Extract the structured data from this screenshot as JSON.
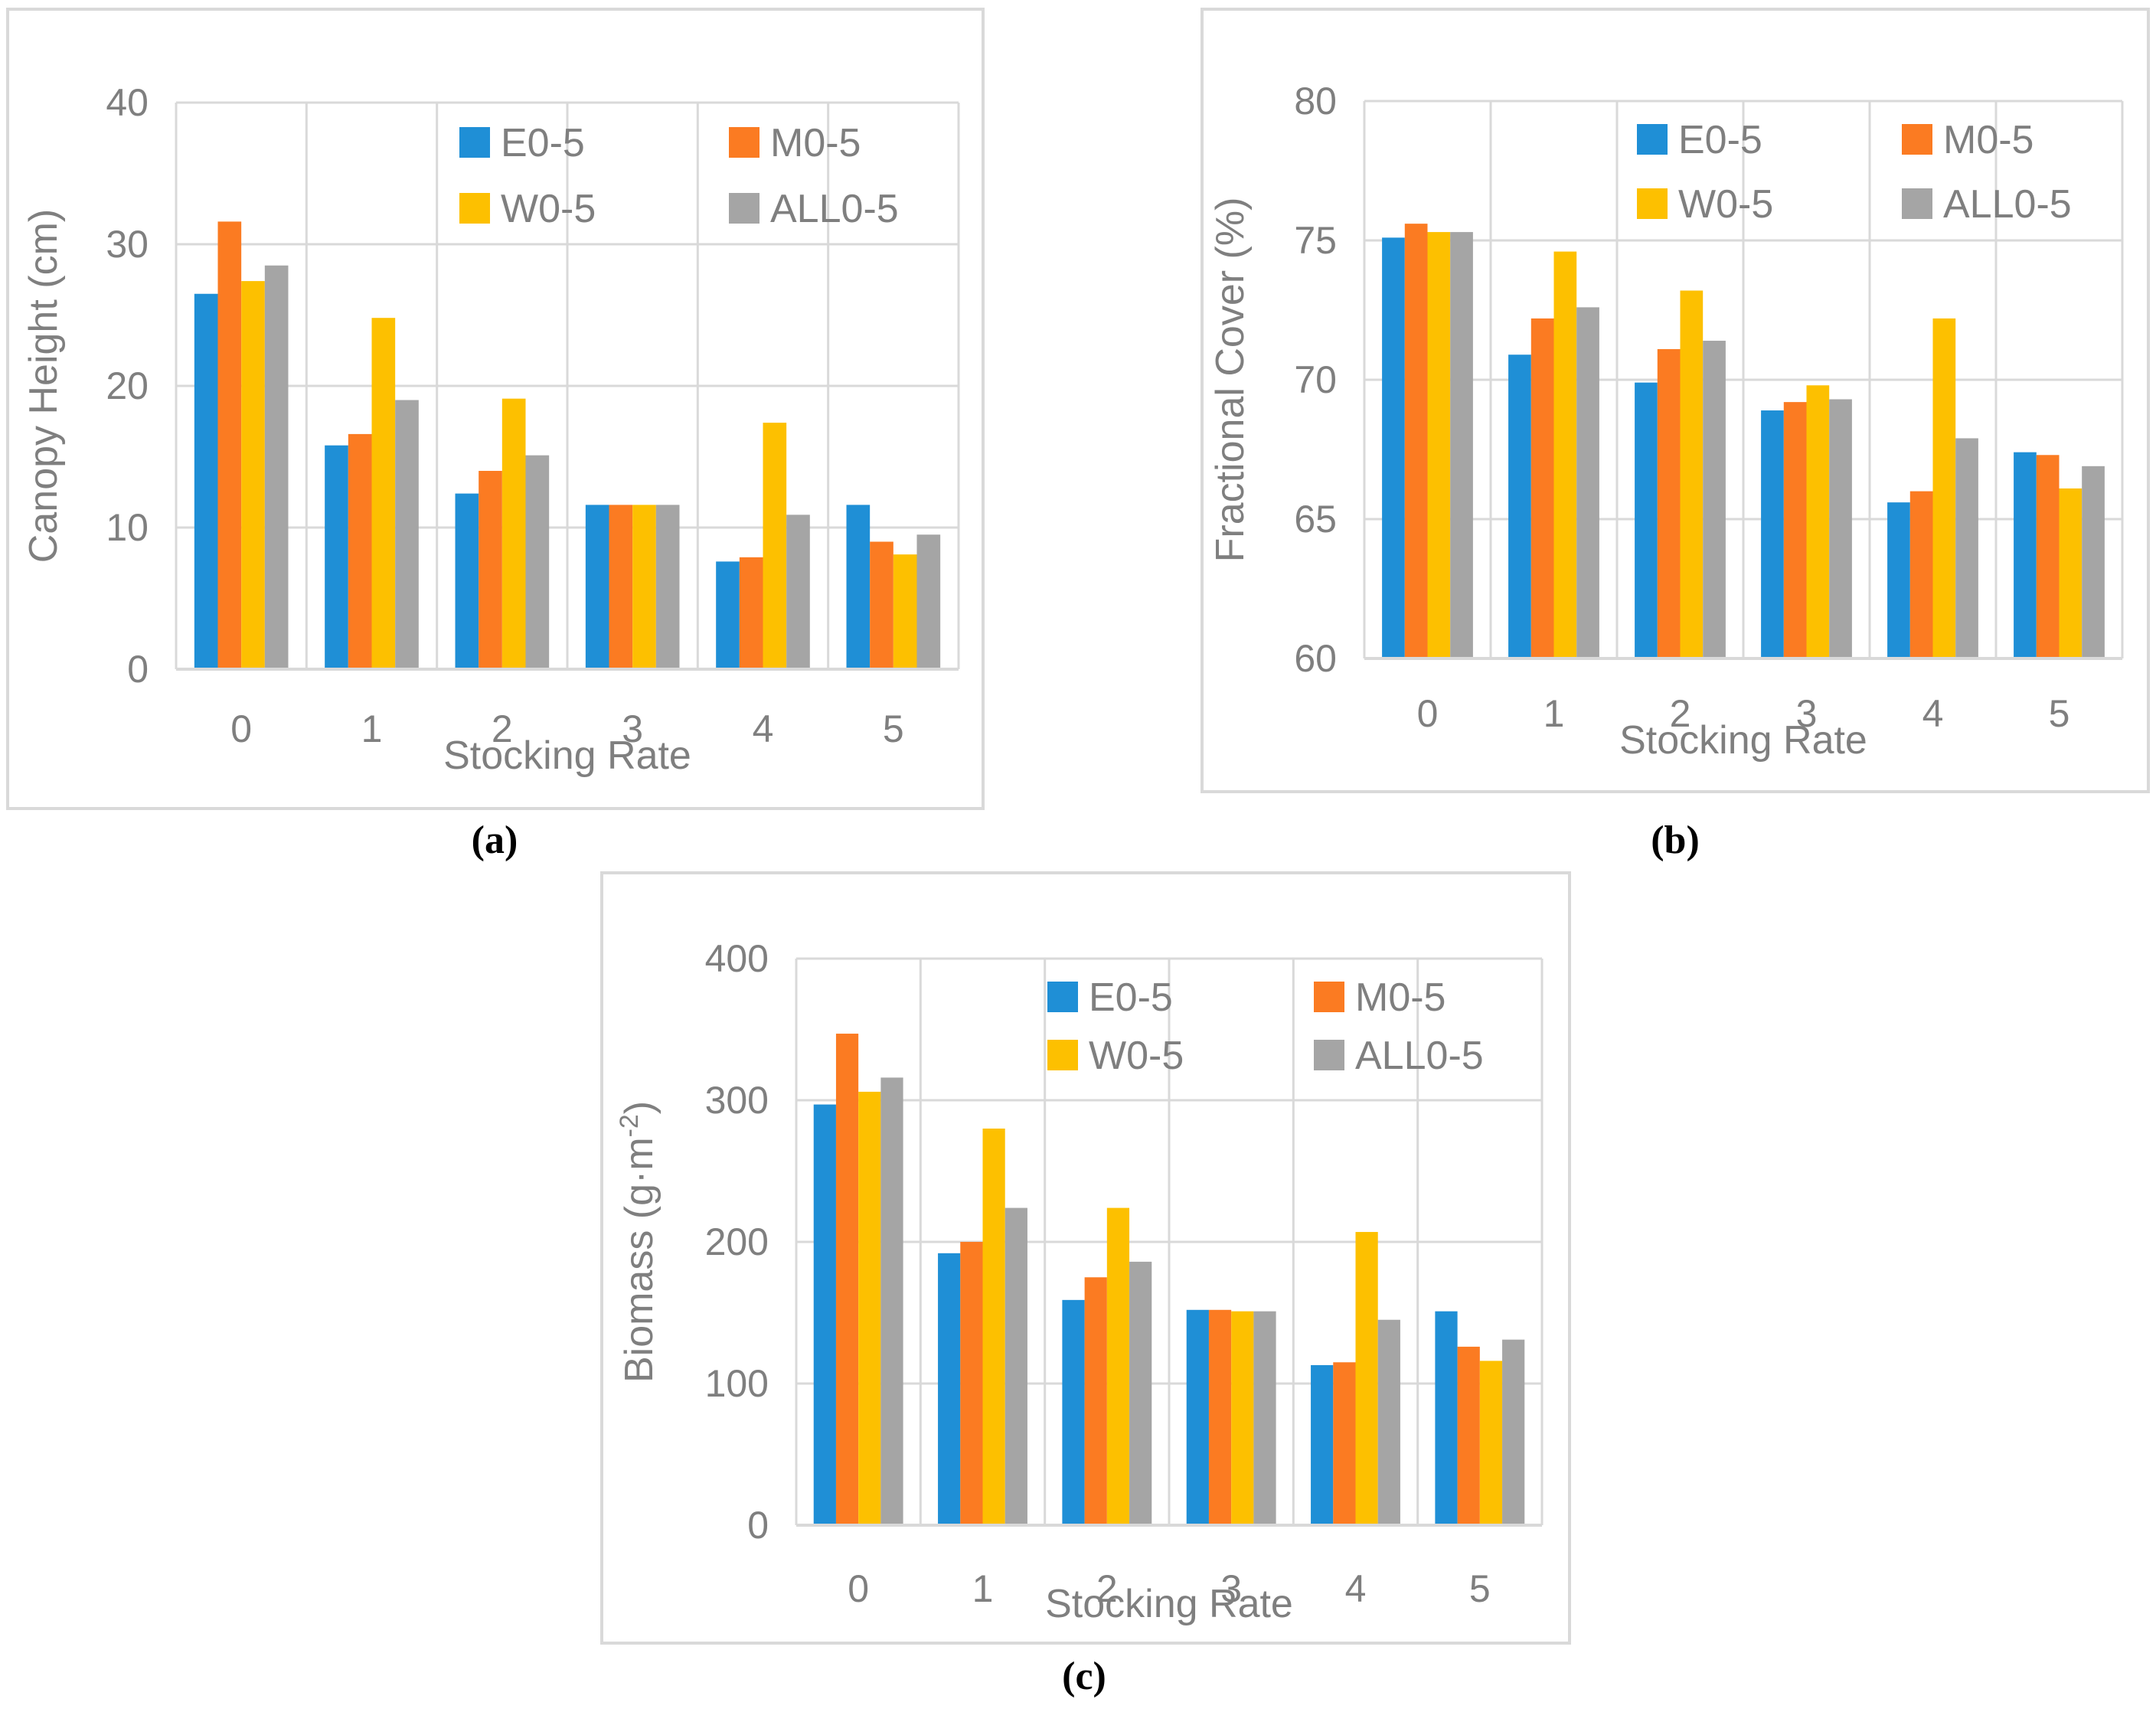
{
  "colors": {
    "E0-5": "#1f8fd6",
    "M0-5": "#fb7b22",
    "W0-5": "#fdc000",
    "ALL0-5": "#a5a5a5",
    "grid": "#d9d9d9",
    "axis_text": "#7f7f7f"
  },
  "chart_data": [
    {
      "type": "bar",
      "panel": "a",
      "caption": "(a)",
      "xlabel": "Stocking Rate",
      "ylabel": "Canopy Height (cm)",
      "ylim": [
        0,
        40
      ],
      "yticks": [
        "0",
        "10",
        "20",
        "30",
        "40"
      ],
      "grid": true,
      "legend": "top-right",
      "categories": [
        "0",
        "1",
        "2",
        "3",
        "4",
        "5"
      ],
      "series": [
        {
          "name": "E0-5",
          "values": [
            26.5,
            15.8,
            12.4,
            11.6,
            7.6,
            11.6
          ]
        },
        {
          "name": "M0-5",
          "values": [
            31.6,
            16.6,
            14.0,
            11.6,
            7.9,
            9.0
          ]
        },
        {
          "name": "W0-5",
          "values": [
            27.4,
            24.8,
            19.1,
            11.6,
            17.4,
            8.1
          ]
        },
        {
          "name": "ALL0-5",
          "values": [
            28.5,
            19.0,
            15.1,
            11.6,
            10.9,
            9.5
          ]
        }
      ]
    },
    {
      "type": "bar",
      "panel": "b",
      "caption": "(b)",
      "xlabel": "Stocking Rate",
      "ylabel": "Fractional Cover (%)",
      "ylim": [
        60,
        80
      ],
      "yticks": [
        "60",
        "65",
        "70",
        "75",
        "80"
      ],
      "grid": true,
      "legend": "top-right",
      "categories": [
        "0",
        "1",
        "2",
        "3",
        "4",
        "5"
      ],
      "series": [
        {
          "name": "E0-5",
          "values": [
            75.1,
            70.9,
            69.9,
            68.9,
            65.6,
            67.4
          ]
        },
        {
          "name": "M0-5",
          "values": [
            75.6,
            72.2,
            71.1,
            69.2,
            66.0,
            67.3
          ]
        },
        {
          "name": "W0-5",
          "values": [
            75.3,
            74.6,
            73.2,
            69.8,
            72.2,
            66.1
          ]
        },
        {
          "name": "ALL0-5",
          "values": [
            75.3,
            72.6,
            71.4,
            69.3,
            67.9,
            66.9
          ]
        }
      ]
    },
    {
      "type": "bar",
      "panel": "c",
      "caption": "(c)",
      "xlabel": "Stocking Rate",
      "ylabel": "Biomass (g·m",
      "ylabel_sup": "-2",
      "ylabel_close": ")",
      "ylim": [
        0,
        400
      ],
      "yticks": [
        "0",
        "100",
        "200",
        "300",
        "400"
      ],
      "grid": true,
      "legend": "top-right",
      "categories": [
        "0",
        "1",
        "2",
        "3",
        "4",
        "5"
      ],
      "series": [
        {
          "name": "E0-5",
          "values": [
            297,
            192,
            159,
            152,
            113,
            151
          ]
        },
        {
          "name": "M0-5",
          "values": [
            347,
            200,
            175,
            152,
            115,
            126
          ]
        },
        {
          "name": "W0-5",
          "values": [
            306,
            280,
            224,
            151,
            207,
            116
          ]
        },
        {
          "name": "ALL0-5",
          "values": [
            316,
            224,
            186,
            151,
            145,
            131
          ]
        }
      ]
    }
  ]
}
